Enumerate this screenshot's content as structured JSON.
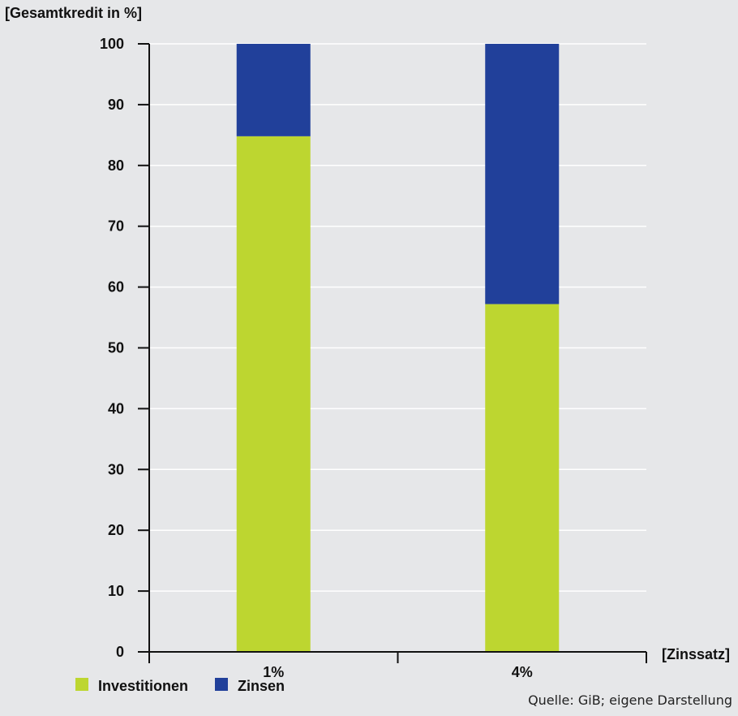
{
  "chart_data": {
    "type": "bar",
    "stacked": true,
    "ylabel": "[Gesamtkredit in %]",
    "xlabel": "[Zinssatz]",
    "categories": [
      "1%",
      "4%"
    ],
    "ylim": [
      0,
      100
    ],
    "yticks": [
      0,
      10,
      20,
      30,
      40,
      50,
      60,
      70,
      80,
      90,
      100
    ],
    "grid": true,
    "series": [
      {
        "name": "Investitionen",
        "color": "#bdd630",
        "values": [
          84.8,
          57.2
        ]
      },
      {
        "name": "Zinsen",
        "color": "#21409a",
        "values": [
          15.2,
          42.8
        ]
      }
    ],
    "legend_position": "bottom-left",
    "source": "Quelle: GiB; eigene Darstellung"
  }
}
